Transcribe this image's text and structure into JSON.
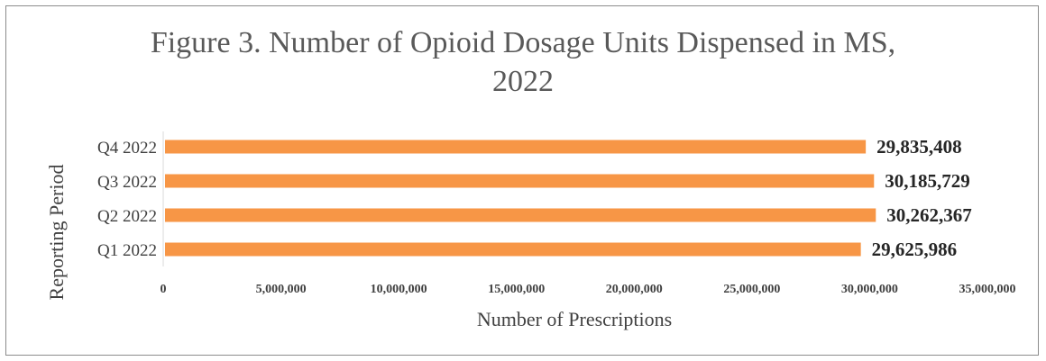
{
  "chart_data": {
    "type": "bar",
    "orientation": "horizontal",
    "title_line1": "Figure 3. Number of Opioid Dosage Units Dispensed in MS,",
    "title_line2": "2022",
    "xlabel": "Number of Prescriptions",
    "ylabel": "Reporting Period",
    "categories": [
      "Q1 2022",
      "Q2 2022",
      "Q3 2022",
      "Q4 2022"
    ],
    "values": [
      29625986,
      30262367,
      30185729,
      29835408
    ],
    "data_labels": [
      "29,625,986",
      "30,262,367",
      "30,185,729",
      "29,835,408"
    ],
    "xlim": [
      0,
      35000000
    ],
    "x_ticks": [
      0,
      5000000,
      10000000,
      15000000,
      20000000,
      25000000,
      30000000,
      35000000
    ],
    "x_tick_labels": [
      "0",
      "5,000,000",
      "10,000,000",
      "15,000,000",
      "20,000,000",
      "25,000,000",
      "30,000,000",
      "35,000,000"
    ],
    "bar_color": "#F79646",
    "grid": false,
    "legend": "none"
  }
}
